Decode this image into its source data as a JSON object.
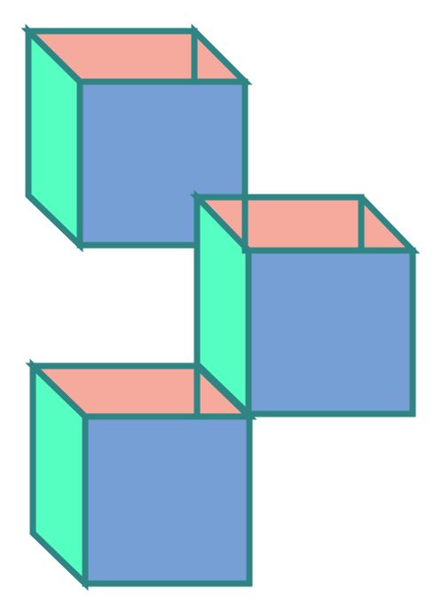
{
  "diagram": {
    "type": "isometric-cube-stack",
    "cube_count": 3,
    "colors": {
      "background": "#ffffff",
      "stroke": "#2f8484",
      "front_face": "#769fd6",
      "side_face": "#55ffc2",
      "top_face": "#f6a99d"
    },
    "cubes": [
      {
        "id": "top"
      },
      {
        "id": "middle"
      },
      {
        "id": "bottom"
      }
    ]
  }
}
